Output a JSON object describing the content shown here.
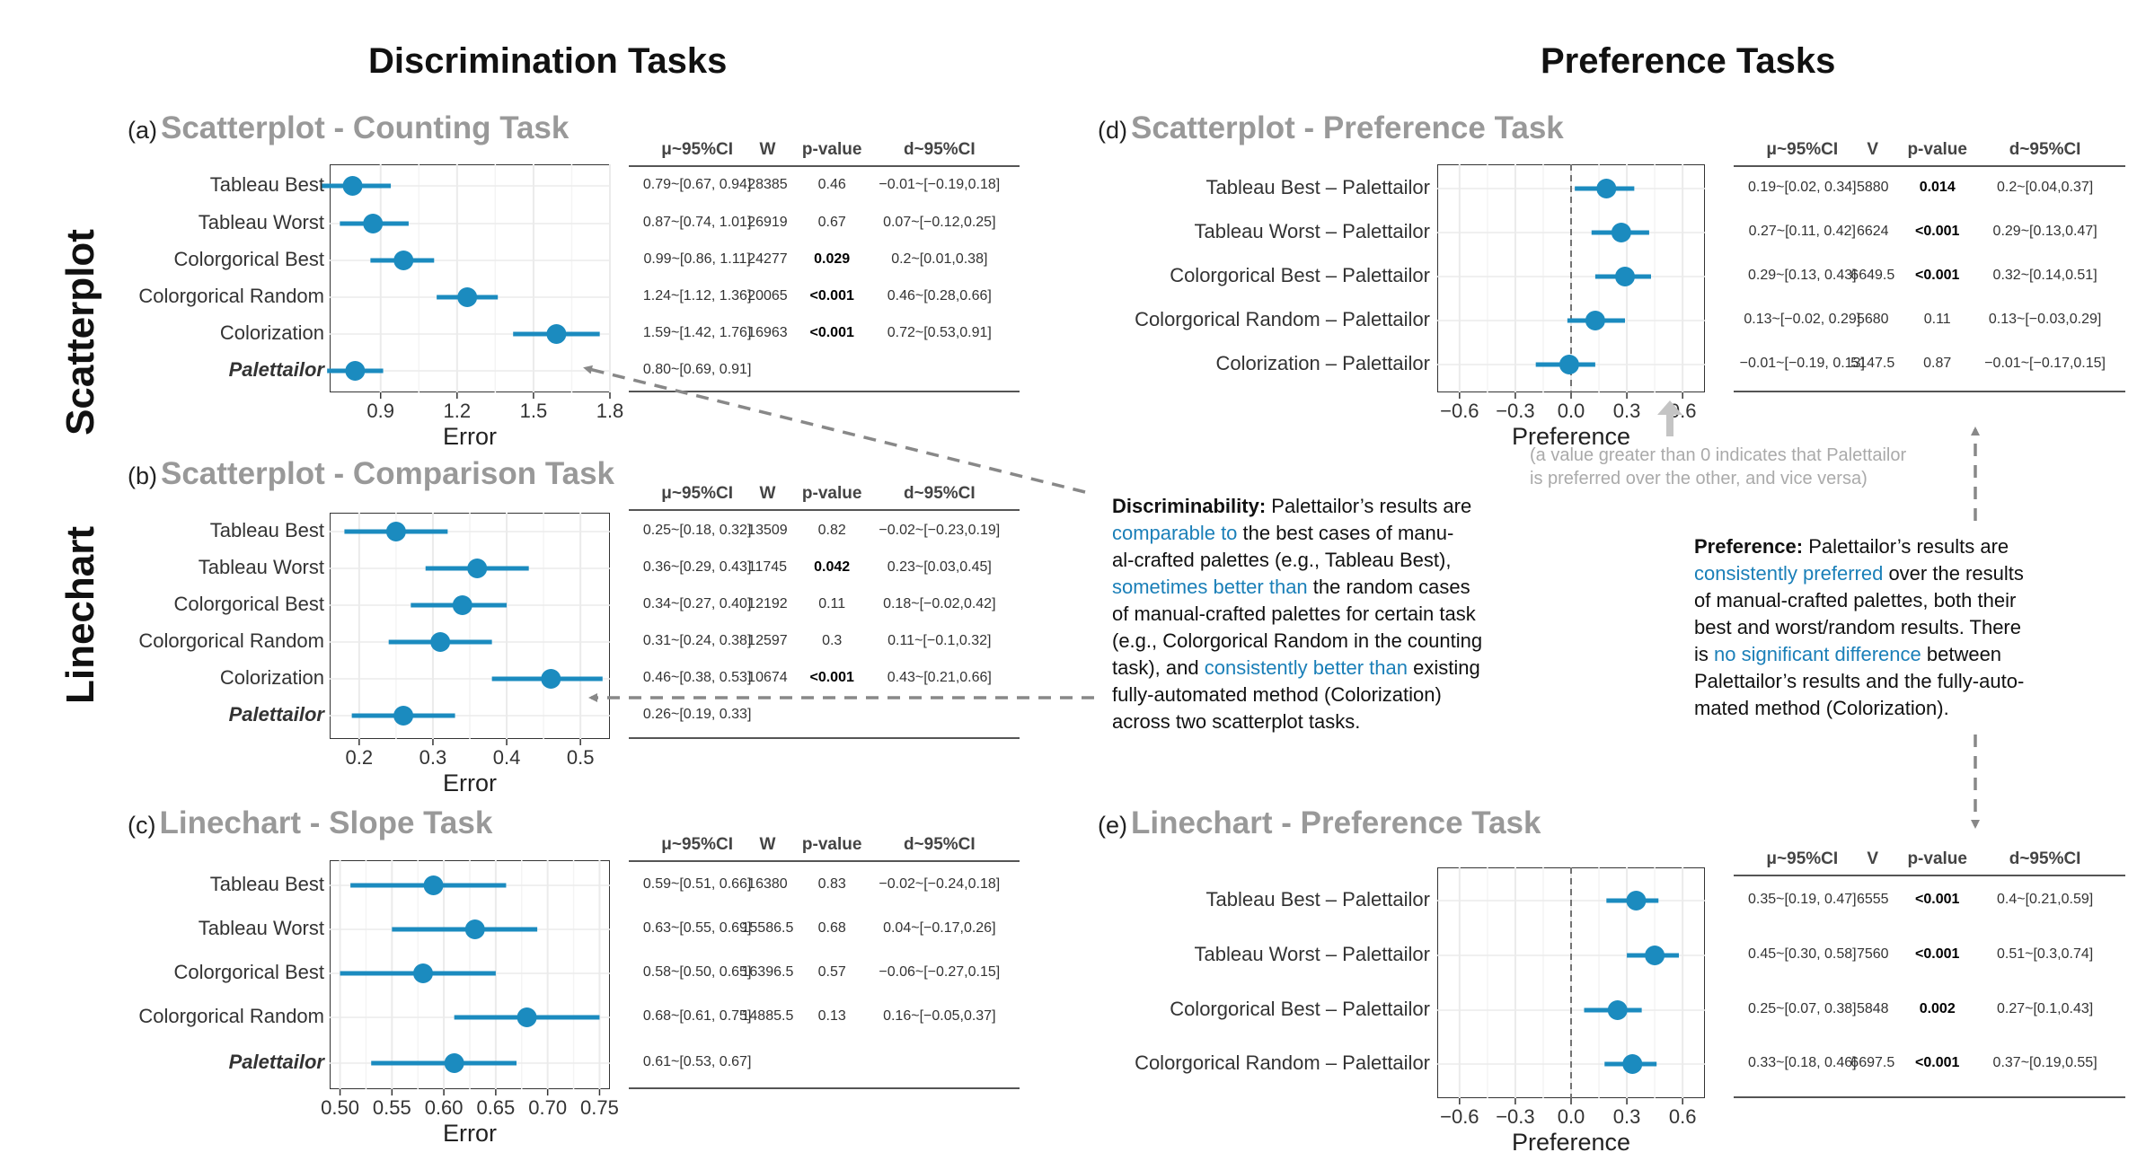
{
  "headings": {
    "discrimination": "Discrimination Tasks",
    "preference": "Preference Tasks",
    "scatterplot": "Scatterplot",
    "linechart": "Linechart"
  },
  "colors": {
    "point": "#1b8bbf",
    "grid": "#ebebeb",
    "frame": "#333333",
    "arrow": "#888888"
  },
  "table_headers": {
    "mu": "μ~95%CI",
    "w": "W",
    "v": "V",
    "p": "p-value",
    "d": "d~95%CI"
  },
  "panel_a": {
    "label": "(a)",
    "title": "Scatterplot - Counting Task"
  },
  "panel_b": {
    "label": "(b)",
    "title": "Scatterplot - Comparison Task"
  },
  "panel_c": {
    "label": "(c)",
    "title": "Linechart - Slope Task"
  },
  "panel_d": {
    "label": "(d)",
    "title": "Scatterplot - Preference Task",
    "note1": "(a value greater than 0 indicates that Palettailor",
    "note2": "is preferred over the other, and vice versa)"
  },
  "panel_e": {
    "label": "(e)",
    "title": "Linechart - Preference Task"
  },
  "discrim_text": {
    "l1a": "Discriminability:",
    "l1b": " Palettailor’s results are",
    "l2a": "comparable to",
    "l2b": " the best cases of manu-",
    "l3": "al-crafted palettes (e.g., Tableau Best),",
    "l4a": "sometimes better than",
    "l4b": " the random cases",
    "l5": "of manual-crafted palettes for certain task",
    "l6": "(e.g., Colorgorical Random in the counting",
    "l7a": "task), and ",
    "l7b": "consistently better than",
    "l7c": " existing",
    "l8": "fully-automated method (Colorization)",
    "l9": "across two scatterplot tasks."
  },
  "pref_text": {
    "l1a": "Preference:",
    "l1b": " Palettailor’s results are",
    "l2a": "consistently preferred",
    "l2b": " over the results",
    "l3": "of manual-crafted palettes, both their",
    "l4": "best and worst/random results. There",
    "l5a": "is ",
    "l5b": "no significant difference",
    "l5c": " between",
    "l6": "Palettailor’s results and the fully-auto-",
    "l7": "mated method (Colorization)."
  },
  "chart_data": [
    {
      "type": "forest",
      "id": "a",
      "title": "Scatterplot - Counting Task",
      "xlabel": "Error",
      "xlim": [
        0.7,
        1.8
      ],
      "xticks": [
        "0.9",
        "1.2",
        "1.5",
        "1.8"
      ],
      "categories": [
        "Tableau Best",
        "Tableau Worst",
        "Colorgorical Best",
        "Colorgorical Random",
        "Colorization",
        "Palettailor"
      ],
      "values": [
        0.79,
        0.87,
        0.99,
        1.24,
        1.59,
        0.8
      ],
      "ci_low": [
        0.67,
        0.74,
        0.86,
        1.12,
        1.42,
        0.69
      ],
      "ci_high": [
        0.94,
        1.01,
        1.11,
        1.36,
        1.76,
        0.91
      ],
      "rows": [
        [
          "0.79~[0.67, 0.94]",
          "28385",
          "0.46",
          "−0.01~[−0.19,0.18]"
        ],
        [
          "0.87~[0.74, 1.01]",
          "26919",
          "0.67",
          "0.07~[−0.12,0.25]"
        ],
        [
          "0.99~[0.86, 1.11]",
          "24277",
          "0.029",
          "0.2~[0.01,0.38]"
        ],
        [
          "1.24~[1.12, 1.36]",
          "20065",
          "<0.001",
          "0.46~[0.28,0.66]"
        ],
        [
          "1.59~[1.42, 1.76]",
          "16963",
          "<0.001",
          "0.72~[0.53,0.91]"
        ],
        [
          "0.80~[0.69, 0.91]",
          "",
          "",
          ""
        ]
      ],
      "bold_p": [
        false,
        false,
        true,
        true,
        true,
        false
      ]
    },
    {
      "type": "forest",
      "id": "b",
      "title": "Scatterplot - Comparison Task",
      "xlabel": "Error",
      "xlim": [
        0.16,
        0.54
      ],
      "xticks": [
        "0.2",
        "0.3",
        "0.4",
        "0.5"
      ],
      "categories": [
        "Tableau Best",
        "Tableau Worst",
        "Colorgorical Best",
        "Colorgorical Random",
        "Colorization",
        "Palettailor"
      ],
      "values": [
        0.25,
        0.36,
        0.34,
        0.31,
        0.46,
        0.26
      ],
      "ci_low": [
        0.18,
        0.29,
        0.27,
        0.24,
        0.38,
        0.19
      ],
      "ci_high": [
        0.32,
        0.43,
        0.4,
        0.38,
        0.53,
        0.33
      ],
      "rows": [
        [
          "0.25~[0.18, 0.32]",
          "13509",
          "0.82",
          "−0.02~[−0.23,0.19]"
        ],
        [
          "0.36~[0.29, 0.43]",
          "11745",
          "0.042",
          "0.23~[0.03,0.45]"
        ],
        [
          "0.34~[0.27, 0.40]",
          "12192",
          "0.11",
          "0.18~[−0.02,0.42]"
        ],
        [
          "0.31~[0.24, 0.38]",
          "12597",
          "0.3",
          "0.11~[−0.1,0.32]"
        ],
        [
          "0.46~[0.38, 0.53]",
          "10674",
          "<0.001",
          "0.43~[0.21,0.66]"
        ],
        [
          "0.26~[0.19, 0.33]",
          "",
          "",
          ""
        ]
      ],
      "bold_p": [
        false,
        true,
        false,
        false,
        true,
        false
      ]
    },
    {
      "type": "forest",
      "id": "c",
      "title": "Linechart - Slope Task",
      "xlabel": "Error",
      "xlim": [
        0.49,
        0.76
      ],
      "xticks": [
        "0.50",
        "0.55",
        "0.60",
        "0.65",
        "0.70",
        "0.75"
      ],
      "categories": [
        "Tableau Best",
        "Tableau Worst",
        "Colorgorical Best",
        "Colorgorical Random",
        "Palettailor"
      ],
      "values": [
        0.59,
        0.63,
        0.58,
        0.68,
        0.61
      ],
      "ci_low": [
        0.51,
        0.55,
        0.5,
        0.61,
        0.53
      ],
      "ci_high": [
        0.66,
        0.69,
        0.65,
        0.75,
        0.67
      ],
      "rows": [
        [
          "0.59~[0.51, 0.66]",
          "16380",
          "0.83",
          "−0.02~[−0.24,0.18]"
        ],
        [
          "0.63~[0.55, 0.69]",
          "15586.5",
          "0.68",
          "0.04~[−0.17,0.26]"
        ],
        [
          "0.58~[0.50, 0.65]",
          "16396.5",
          "0.57",
          "−0.06~[−0.27,0.15]"
        ],
        [
          "0.68~[0.61, 0.75]",
          "14885.5",
          "0.13",
          "0.16~[−0.05,0.37]"
        ],
        [
          "0.61~[0.53, 0.67]",
          "",
          "",
          ""
        ]
      ],
      "bold_p": [
        false,
        false,
        false,
        false,
        false
      ]
    },
    {
      "type": "forest",
      "id": "d",
      "title": "Scatterplot - Preference Task",
      "xlabel": "Preference",
      "xlim": [
        -0.72,
        0.72
      ],
      "xticks": [
        "−0.6",
        "−0.3",
        "0.0",
        "0.3",
        "0.6"
      ],
      "categories": [
        "Tableau Best – Palettailor",
        "Tableau Worst – Palettailor",
        "Colorgorical Best – Palettailor",
        "Colorgorical Random – Palettailor",
        "Colorization – Palettailor"
      ],
      "values": [
        0.19,
        0.27,
        0.29,
        0.13,
        -0.01
      ],
      "ci_low": [
        0.02,
        0.11,
        0.13,
        -0.02,
        -0.19
      ],
      "ci_high": [
        0.34,
        0.42,
        0.43,
        0.29,
        0.13
      ],
      "rows": [
        [
          "0.19~[0.02, 0.34]",
          "5880",
          "0.014",
          "0.2~[0.04,0.37]"
        ],
        [
          "0.27~[0.11, 0.42]",
          "6624",
          "<0.001",
          "0.29~[0.13,0.47]"
        ],
        [
          "0.29~[0.13, 0.43]",
          "6649.5",
          "<0.001",
          "0.32~[0.14,0.51]"
        ],
        [
          "0.13~[−0.02, 0.29]",
          "5680",
          "0.11",
          "0.13~[−0.03,0.29]"
        ],
        [
          "−0.01~[−0.19, 0.13]",
          "5147.5",
          "0.87",
          "−0.01~[−0.17,0.15]"
        ]
      ],
      "bold_p": [
        true,
        true,
        true,
        false,
        false
      ]
    },
    {
      "type": "forest",
      "id": "e",
      "title": "Linechart - Preference Task",
      "xlabel": "Preference",
      "xlim": [
        -0.72,
        0.72
      ],
      "xticks": [
        "−0.6",
        "−0.3",
        "0.0",
        "0.3",
        "0.6"
      ],
      "categories": [
        "Tableau Best – Palettailor",
        "Tableau Worst – Palettailor",
        "Colorgorical Best – Palettailor",
        "Colorgorical Random – Palettailor"
      ],
      "values": [
        0.35,
        0.45,
        0.25,
        0.33
      ],
      "ci_low": [
        0.19,
        0.3,
        0.07,
        0.18
      ],
      "ci_high": [
        0.47,
        0.58,
        0.38,
        0.46
      ],
      "rows": [
        [
          "0.35~[0.19, 0.47]",
          "6555",
          "<0.001",
          "0.4~[0.21,0.59]"
        ],
        [
          "0.45~[0.30, 0.58]",
          "7560",
          "<0.001",
          "0.51~[0.3,0.74]"
        ],
        [
          "0.25~[0.07, 0.38]",
          "5848",
          "0.002",
          "0.27~[0.1,0.43]"
        ],
        [
          "0.33~[0.18, 0.46]",
          "6697.5",
          "<0.001",
          "0.37~[0.19,0.55]"
        ]
      ],
      "bold_p": [
        true,
        true,
        true,
        true
      ]
    }
  ]
}
